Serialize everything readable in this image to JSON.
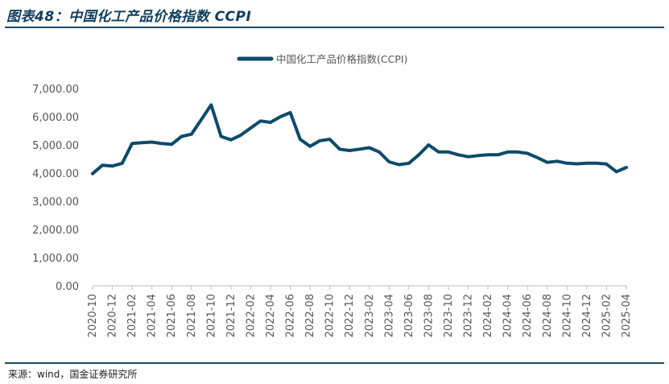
{
  "header": {
    "title": "图表48：中国化工产品价格指数 CCPI"
  },
  "footer": {
    "source": "来源：wind，国金证券研究所"
  },
  "colors": {
    "series": "#0d4a6b",
    "rule": "#1a4b6b",
    "axis": "#bfbfbf"
  },
  "chart_data": {
    "type": "line",
    "ylim": [
      0,
      7000
    ],
    "yticks": [
      "7,000.00",
      "6,000.00",
      "5,000.00",
      "4,000.00",
      "3,000.00",
      "2,000.00",
      "1,000.00",
      "0.00"
    ],
    "ytick_values": [
      7000,
      6000,
      5000,
      4000,
      3000,
      2000,
      1000,
      0
    ],
    "xtick_labels": [
      "2020-10",
      "2020-12",
      "2021-02",
      "2021-04",
      "2021-06",
      "2021-08",
      "2021-10",
      "2021-12",
      "2022-02",
      "2022-04",
      "2022-06",
      "2022-08",
      "2022-10",
      "2022-12",
      "2023-02",
      "2023-04",
      "2023-06",
      "2023-08",
      "2023-10",
      "2023-12",
      "2024-02",
      "2024-04",
      "2024-06",
      "2024-08",
      "2024-10",
      "2024-12",
      "2025-02",
      "2025-04"
    ],
    "legend": {
      "position": "top-center",
      "entries": [
        "中国化工产品价格指数(CCPI)"
      ]
    },
    "series": [
      {
        "name": "中国化工产品价格指数(CCPI)",
        "x": [
          "2020-10",
          "2020-11",
          "2020-12",
          "2021-01",
          "2021-02",
          "2021-03",
          "2021-04",
          "2021-05",
          "2021-06",
          "2021-07",
          "2021-08",
          "2021-09",
          "2021-10",
          "2021-11",
          "2021-12",
          "2022-01",
          "2022-02",
          "2022-03",
          "2022-04",
          "2022-05",
          "2022-06",
          "2022-07",
          "2022-08",
          "2022-09",
          "2022-10",
          "2022-11",
          "2022-12",
          "2023-01",
          "2023-02",
          "2023-03",
          "2023-04",
          "2023-05",
          "2023-06",
          "2023-07",
          "2023-08",
          "2023-09",
          "2023-10",
          "2023-11",
          "2023-12",
          "2024-01",
          "2024-02",
          "2024-03",
          "2024-04",
          "2024-05",
          "2024-06",
          "2024-07",
          "2024-08",
          "2024-09",
          "2024-10",
          "2024-11",
          "2024-12",
          "2025-01",
          "2025-02",
          "2025-03",
          "2025-04"
        ],
        "values": [
          3980,
          4280,
          4250,
          4350,
          5050,
          5080,
          5100,
          5050,
          5020,
          5300,
          5380,
          5900,
          6420,
          5300,
          5180,
          5350,
          5600,
          5850,
          5800,
          6000,
          6150,
          5200,
          4950,
          5150,
          5200,
          4850,
          4800,
          4850,
          4900,
          4750,
          4400,
          4300,
          4350,
          4650,
          5000,
          4750,
          4750,
          4650,
          4580,
          4620,
          4650,
          4650,
          4750,
          4750,
          4700,
          4550,
          4380,
          4420,
          4350,
          4330,
          4350,
          4350,
          4320,
          4050,
          4200
        ]
      }
    ]
  }
}
